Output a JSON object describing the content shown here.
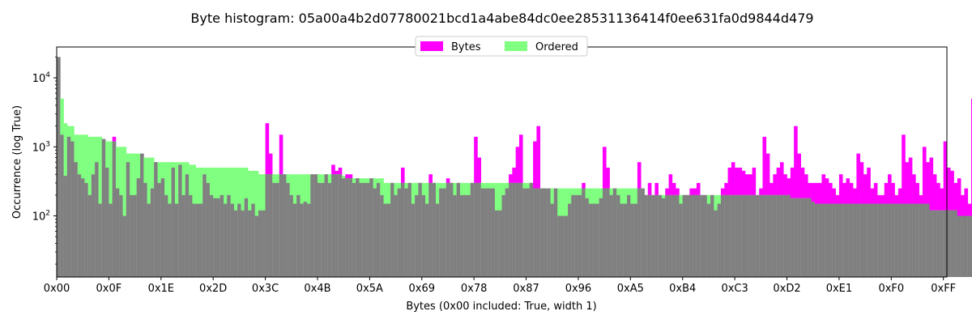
{
  "chart_data": {
    "type": "bar",
    "title": "Byte histogram: 05a00a4b2d07780021bcd1a4abe84dc0ee28531136414f0ee631fa0d9844d479",
    "xlabel": "Bytes (0x00 included: True, width 1)",
    "ylabel": "Occurrence (log True)",
    "y_scale": "log",
    "ylim": [
      13,
      28000
    ],
    "xlim": [
      0,
      256
    ],
    "x_tick_labels": [
      "0x00",
      "0x0F",
      "0x1E",
      "0x2D",
      "0x3C",
      "0x4B",
      "0x5A",
      "0x69",
      "0x78",
      "0x87",
      "0x96",
      "0xA5",
      "0xB4",
      "0xC3",
      "0xD2",
      "0xE1",
      "0xF0",
      "0xFF"
    ],
    "x_tick_values": [
      0,
      15,
      30,
      45,
      60,
      75,
      90,
      105,
      120,
      135,
      150,
      165,
      180,
      195,
      210,
      225,
      240,
      255
    ],
    "y_tick_values": [
      100,
      1000,
      10000
    ],
    "legend": {
      "placement": "top-center",
      "entries": [
        "Bytes",
        "Ordered"
      ]
    },
    "colors": {
      "bytes": "#ff00ff",
      "ordered": "#80ff80",
      "overlap": "#808080"
    },
    "series": [
      {
        "name": "Bytes",
        "values": [
          20000,
          1500,
          380,
          1400,
          1200,
          600,
          400,
          350,
          300,
          200,
          400,
          600,
          150,
          1300,
          500,
          150,
          1400,
          250,
          200,
          100,
          600,
          200,
          200,
          350,
          800,
          300,
          150,
          250,
          600,
          300,
          350,
          200,
          150,
          500,
          150,
          550,
          200,
          400,
          200,
          150,
          150,
          150,
          400,
          300,
          200,
          180,
          180,
          200,
          150,
          200,
          150,
          120,
          150,
          120,
          180,
          120,
          150,
          100,
          120,
          120,
          2200,
          800,
          300,
          300,
          1500,
          400,
          300,
          200,
          150,
          200,
          150,
          160,
          150,
          400,
          400,
          300,
          300,
          400,
          300,
          550,
          450,
          500,
          350,
          400,
          400,
          300,
          350,
          300,
          300,
          300,
          350,
          250,
          300,
          200,
          150,
          150,
          300,
          200,
          250,
          500,
          250,
          300,
          150,
          200,
          300,
          200,
          150,
          400,
          300,
          150,
          250,
          250,
          350,
          300,
          200,
          300,
          200,
          200,
          200,
          300,
          1400,
          700,
          250,
          250,
          250,
          250,
          120,
          120,
          200,
          250,
          400,
          500,
          1000,
          1500,
          250,
          250,
          300,
          1200,
          2000,
          250,
          250,
          250,
          150,
          250,
          100,
          100,
          100,
          150,
          200,
          200,
          200,
          300,
          180,
          150,
          150,
          150,
          180,
          1000,
          500,
          200,
          250,
          200,
          150,
          150,
          200,
          150,
          150,
          600,
          250,
          200,
          300,
          200,
          300,
          200,
          180,
          250,
          400,
          300,
          250,
          150,
          200,
          200,
          250,
          250,
          300,
          200,
          200,
          150,
          200,
          120,
          150,
          250,
          300,
          500,
          600,
          500,
          500,
          450,
          400,
          400,
          500,
          200,
          250,
          1400,
          800,
          300,
          400,
          500,
          600,
          400,
          350,
          500,
          2000,
          800,
          500,
          400,
          300,
          300,
          300,
          300,
          400,
          350,
          300,
          250,
          200,
          400,
          300,
          350,
          300,
          250,
          800,
          600,
          400,
          500,
          250,
          300,
          200,
          200,
          300,
          400,
          300,
          200,
          250,
          1500,
          600,
          700,
          400,
          300,
          200,
          1000,
          600,
          700,
          400,
          300,
          250,
          1200,
          500,
          450,
          300,
          350,
          200,
          250,
          150,
          5000
        ],
        "note": ""
      },
      {
        "name": "Ordered",
        "values": []
      }
    ]
  }
}
